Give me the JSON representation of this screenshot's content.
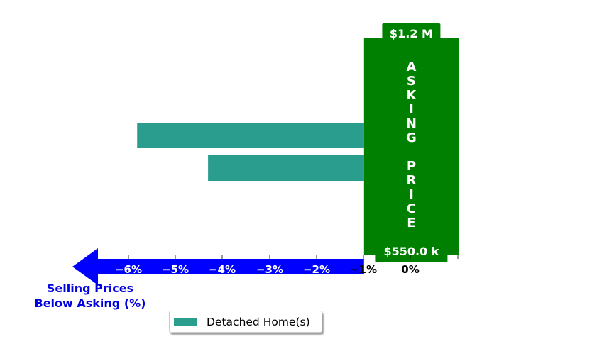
{
  "chart_data": {
    "type": "bar",
    "orientation": "horizontal",
    "series": [
      {
        "name": "Detached Home(s)",
        "color": "#2a9d8f",
        "values": [
          -5.8,
          -4.3
        ]
      }
    ],
    "xlim": [
      -7.2,
      1.0
    ],
    "xticks": [
      "−6%",
      "−5%",
      "−4%",
      "−3%",
      "−2%",
      "−1%",
      "0%"
    ],
    "xtick_values": [
      -6,
      -5,
      -4,
      -3,
      -2,
      -1,
      0
    ],
    "legend": {
      "placement": "bottom-center",
      "label": "Detached Home(s)"
    },
    "annotations": {
      "asking_price_label": "ASKING PRICE",
      "price_high": "$1.2 M",
      "price_low": "$550.0 k",
      "arrow_label_line1": "Selling Prices",
      "arrow_label_line2": "Below Asking (%)"
    },
    "colors": {
      "bar": "#2a9d8f",
      "asking_box": "#008000",
      "arrow": "#0000ff",
      "arrow_text": "#0000e0"
    }
  }
}
